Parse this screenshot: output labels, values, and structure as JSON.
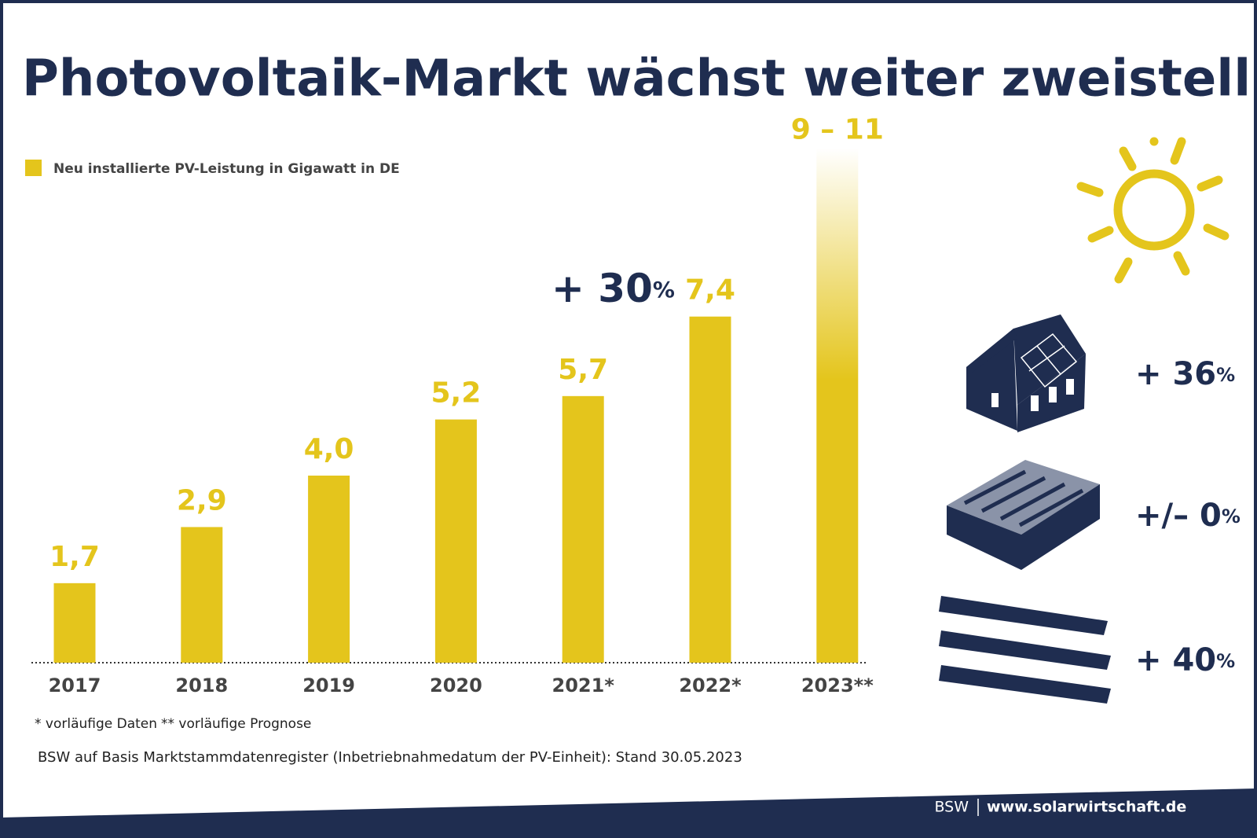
{
  "chart_data": {
    "type": "bar",
    "title": "Photovoltaik-Markt wächst weiter zweistellig",
    "legend": "Neu installierte PV-Leistung in Gigawatt in DE",
    "color": "#e4c51c",
    "categories": [
      "2017",
      "2018",
      "2019",
      "2020",
      "2021*",
      "2022*",
      "2023**"
    ],
    "values": [
      1.7,
      2.9,
      4.0,
      5.2,
      5.7,
      7.4,
      null
    ],
    "value_labels": [
      "1,7",
      "2,9",
      "4,0",
      "5,2",
      "5,7",
      "7,4",
      null
    ],
    "forecast": {
      "category": 6,
      "low": 9,
      "high": 11,
      "label": "9 – 11"
    },
    "annotation": "+ 30%",
    "segments": [
      "+ 36%",
      "+/– 0%",
      "+ 40%"
    ],
    "footnotes": [
      "* vorläufige Daten",
      "** vorläufige Prognose"
    ],
    "source": "BSW auf Basis Marktstammdatenregister (Inbetriebnahmedatum der PV-Einheit): Stand 30.05.2023",
    "footer": {
      "org": "BSW",
      "url": "www.solarwirtschaft.de"
    }
  }
}
